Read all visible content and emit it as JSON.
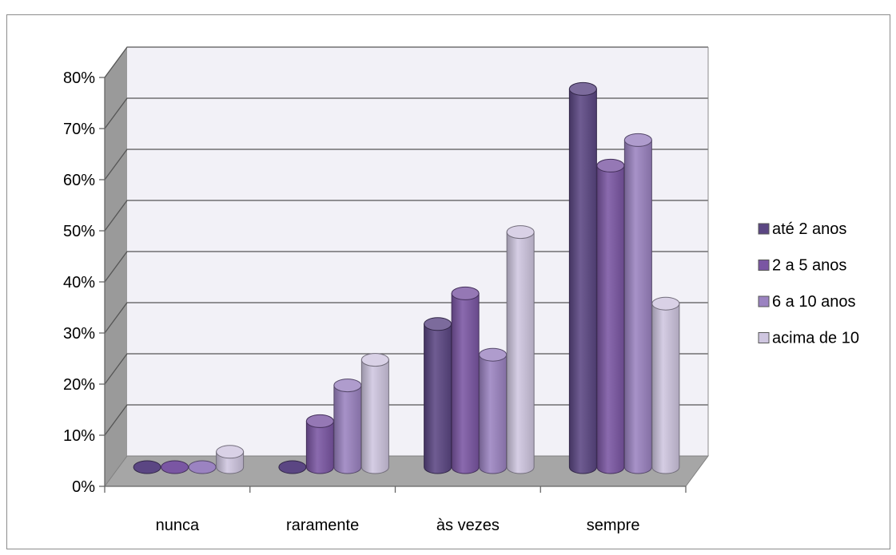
{
  "chart_data": {
    "type": "bar",
    "title": "",
    "xlabel": "",
    "ylabel": "",
    "categories": [
      "nunca",
      "raramente",
      "às vezes",
      "sempre"
    ],
    "yticks": [
      "0%",
      "10%",
      "20%",
      "30%",
      "40%",
      "50%",
      "60%",
      "70%",
      "80%"
    ],
    "ylim": [
      0,
      80
    ],
    "grid": true,
    "legend_position": "right",
    "style": "3d-cylinder",
    "series": [
      {
        "name": "até 2 anos",
        "color": "#5b4683",
        "values": [
          0,
          0,
          28,
          74
        ]
      },
      {
        "name": "2 a 5 anos",
        "color": "#7a56a3",
        "values": [
          0,
          9,
          34,
          59
        ]
      },
      {
        "name": "6 a 10 anos",
        "color": "#9b83c1",
        "values": [
          0,
          16,
          22,
          64
        ]
      },
      {
        "name": "acima de 10",
        "color": "#cfc6e0",
        "values": [
          3,
          21,
          46,
          32
        ]
      }
    ]
  }
}
